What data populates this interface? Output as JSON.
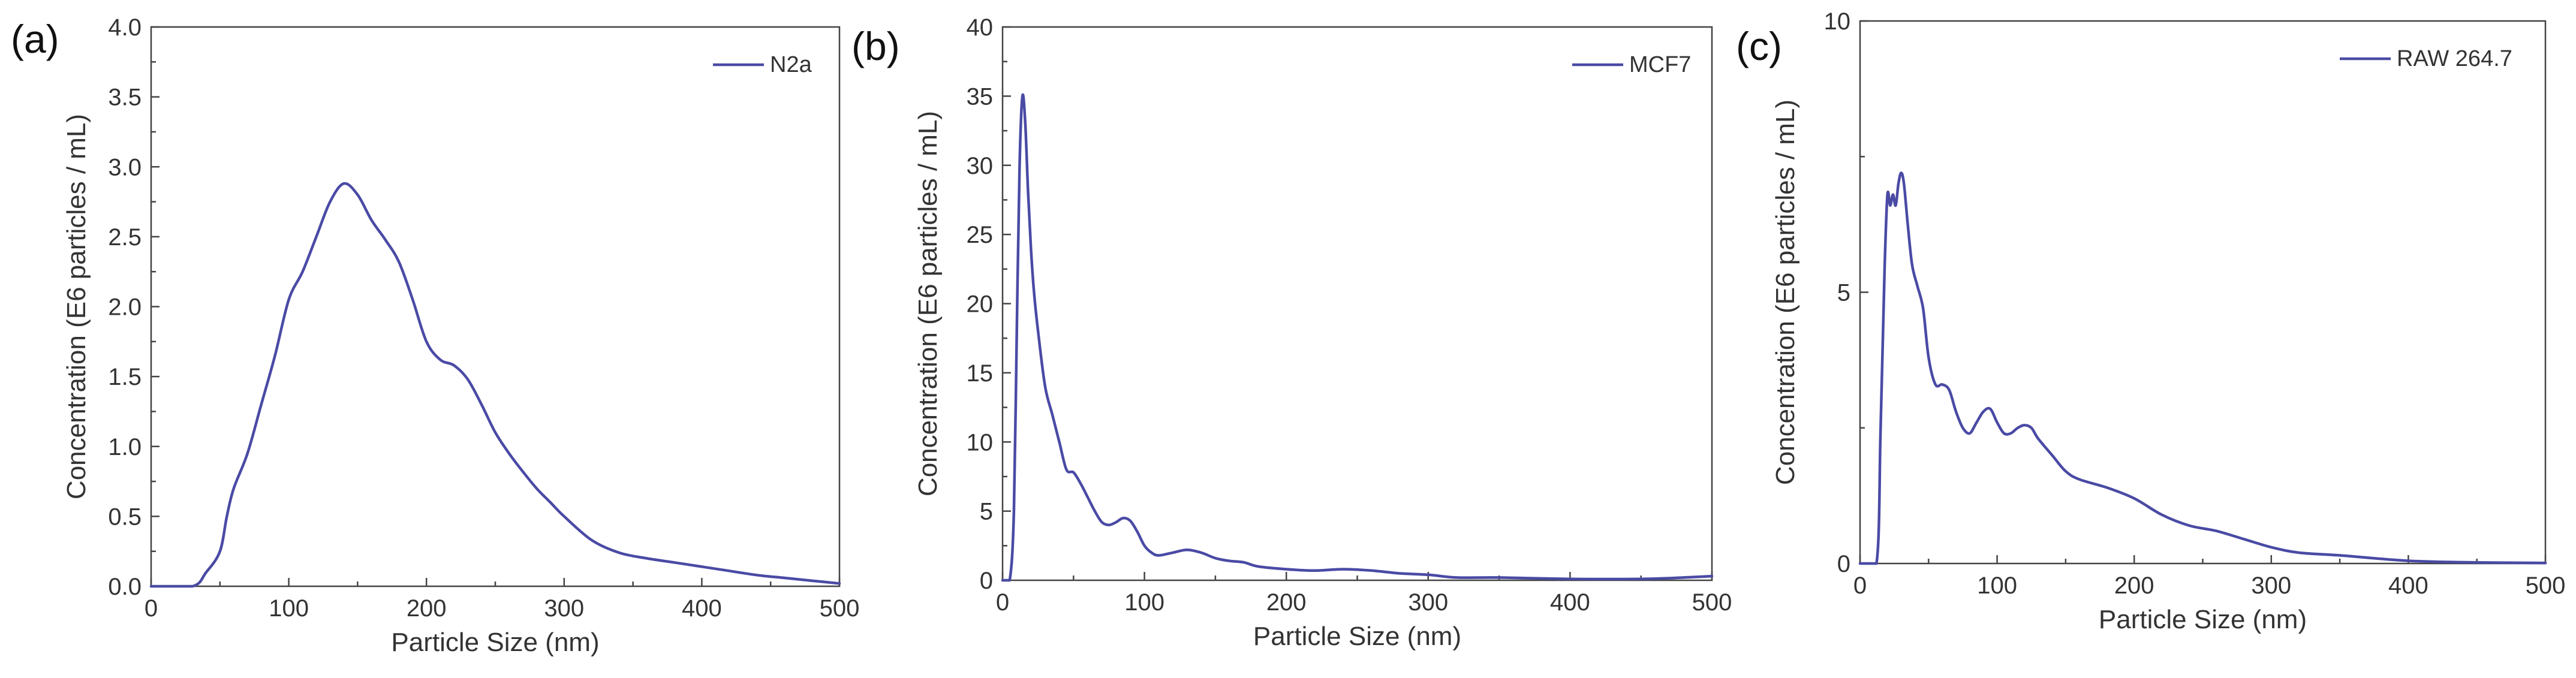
{
  "chart_data": [
    {
      "panel_label": "(a)",
      "type": "line",
      "xlabel": "Particle Size (nm)",
      "ylabel": "Concentration (E6 particles / mL)",
      "xlim": [
        0,
        500
      ],
      "ylim": [
        0,
        4.0
      ],
      "xticks": [
        0,
        100,
        200,
        300,
        400,
        500
      ],
      "yticks": [
        0,
        0.5,
        1.0,
        1.5,
        2.0,
        2.5,
        3.0,
        3.5,
        4.0
      ],
      "ytick_decimals": 1,
      "legend_position": "top-right",
      "series": [
        {
          "name": "N2a",
          "color": "#4a4aa5",
          "x": [
            0,
            30,
            40,
            50,
            55,
            60,
            70,
            80,
            90,
            100,
            110,
            120,
            130,
            140,
            150,
            160,
            170,
            180,
            190,
            200,
            210,
            220,
            230,
            240,
            250,
            260,
            270,
            280,
            290,
            300,
            320,
            340,
            360,
            380,
            400,
            420,
            440,
            460,
            480,
            500
          ],
          "y": [
            0,
            0,
            0.1,
            0.25,
            0.5,
            0.7,
            0.95,
            1.3,
            1.65,
            2.05,
            2.25,
            2.5,
            2.75,
            2.88,
            2.8,
            2.62,
            2.48,
            2.32,
            2.05,
            1.75,
            1.62,
            1.58,
            1.48,
            1.3,
            1.1,
            0.95,
            0.82,
            0.7,
            0.6,
            0.5,
            0.33,
            0.24,
            0.2,
            0.17,
            0.14,
            0.11,
            0.08,
            0.06,
            0.04,
            0.02
          ]
        }
      ]
    },
    {
      "panel_label": "(b)",
      "type": "line",
      "xlabel": "Particle Size (nm)",
      "ylabel": "Concentration (E6 particles / mL)",
      "xlim": [
        0,
        500
      ],
      "ylim": [
        0,
        40
      ],
      "xticks": [
        0,
        100,
        200,
        300,
        400,
        500
      ],
      "yticks": [
        0,
        5,
        10,
        15,
        20,
        25,
        30,
        35,
        40
      ],
      "ytick_decimals": 0,
      "legend_position": "top-right",
      "series": [
        {
          "name": "MCF7",
          "color": "#4a4aa5",
          "x": [
            0,
            5,
            8,
            10,
            12,
            14,
            16,
            18,
            20,
            22,
            25,
            30,
            35,
            40,
            45,
            50,
            55,
            60,
            65,
            70,
            75,
            80,
            85,
            90,
            95,
            100,
            105,
            110,
            120,
            130,
            140,
            150,
            160,
            170,
            180,
            200,
            220,
            240,
            260,
            280,
            300,
            320,
            350,
            400,
            450,
            480,
            500
          ],
          "y": [
            0,
            0,
            5,
            18,
            30,
            35,
            33,
            28,
            24,
            21,
            18,
            14,
            12,
            10,
            8,
            7.8,
            7,
            6,
            5,
            4.2,
            4,
            4.2,
            4.5,
            4.3,
            3.5,
            2.5,
            2,
            1.8,
            2,
            2.2,
            2,
            1.6,
            1.4,
            1.3,
            1,
            0.8,
            0.7,
            0.8,
            0.7,
            0.5,
            0.4,
            0.2,
            0.2,
            0.1,
            0.1,
            0.2,
            0.3
          ]
        }
      ]
    },
    {
      "panel_label": "(c)",
      "type": "line",
      "xlabel": "Particle Size (nm)",
      "ylabel": "Concentration (E6 particles / mL)",
      "xlim": [
        0,
        500
      ],
      "ylim": [
        0,
        10
      ],
      "xticks": [
        0,
        100,
        200,
        300,
        400,
        500
      ],
      "yticks": [
        0,
        5,
        10
      ],
      "ytick_decimals": 0,
      "legend_position": "top-right",
      "series": [
        {
          "name": "RAW 264.7",
          "color": "#4a4aa5",
          "x": [
            0,
            12,
            15,
            18,
            20,
            22,
            24,
            26,
            28,
            30,
            32,
            35,
            38,
            42,
            46,
            50,
            55,
            60,
            65,
            70,
            75,
            80,
            85,
            90,
            95,
            100,
            105,
            110,
            115,
            120,
            125,
            130,
            140,
            150,
            160,
            180,
            200,
            220,
            240,
            260,
            280,
            300,
            320,
            350,
            400,
            450,
            500
          ],
          "y": [
            0,
            0,
            2.5,
            5.5,
            6.8,
            6.6,
            6.8,
            6.6,
            7.0,
            7.2,
            7.0,
            6.2,
            5.5,
            5.1,
            4.7,
            3.8,
            3.3,
            3.3,
            3.2,
            2.8,
            2.5,
            2.4,
            2.6,
            2.8,
            2.85,
            2.6,
            2.4,
            2.4,
            2.5,
            2.55,
            2.5,
            2.3,
            2.0,
            1.7,
            1.55,
            1.4,
            1.2,
            0.9,
            0.7,
            0.6,
            0.45,
            0.3,
            0.2,
            0.15,
            0.05,
            0.02,
            0.01
          ]
        }
      ]
    }
  ]
}
